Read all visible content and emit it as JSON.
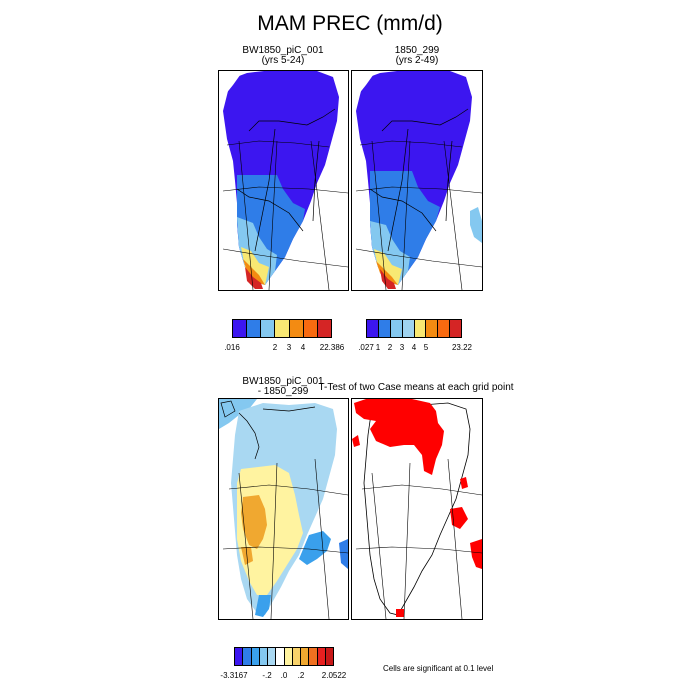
{
  "title": "MAM PREC (mm/d)",
  "panels": {
    "p1": {
      "title": "BW1850_piC_001",
      "subtitle": "(yrs 5-24)"
    },
    "p2": {
      "title": "1850_299",
      "subtitle": "(yrs 2-49)"
    },
    "p3": {
      "title": "BW1850_piC_001",
      "subtitle": "- 1850_299"
    },
    "p4": {
      "title": "T-Test of two Case means at each grid point"
    }
  },
  "colorbars": {
    "cb1": {
      "colors": [
        "#3c16f0",
        "#2f7de8",
        "#84c8f0",
        "#f8e873",
        "#f38b12",
        "#f86a10",
        "#d52525"
      ],
      "labels": [
        ".016",
        "2",
        "3",
        "4",
        "22.386"
      ]
    },
    "cb2": {
      "colors": [
        "#3c16f0",
        "#2f7de8",
        "#84c8f0",
        "#9fd3f0",
        "#f8e873",
        "#f38b12",
        "#f86a10",
        "#d52525"
      ],
      "labels": [
        ".027",
        "1",
        "2",
        "3",
        "4",
        "5",
        "23.22"
      ]
    },
    "cb3": {
      "colors": [
        "#3c16f0",
        "#2f7de8",
        "#3aa0ec",
        "#84c8f0",
        "#a9d8f2",
        "#ffffff",
        "#fff3a0",
        "#f8d26a",
        "#f0a830",
        "#f07020",
        "#e82020",
        "#c81818"
      ],
      "labels": [
        "-3.3167",
        "-.2",
        ".0",
        ".2",
        "2.0522"
      ]
    }
  },
  "note": "Cells are significant at 0.1 level",
  "colors": {
    "significant": "#ff0000"
  }
}
